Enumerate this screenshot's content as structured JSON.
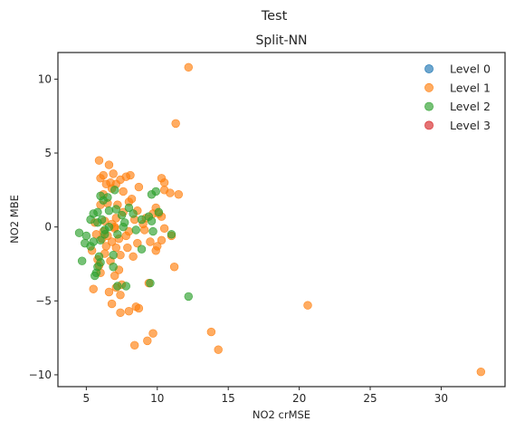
{
  "chart_data": {
    "type": "scatter",
    "suptitle": "Test",
    "title": "Split-NN",
    "xlabel": "NO2 crMSE",
    "ylabel": "NO2 MBE",
    "xlim": [
      3,
      34.5
    ],
    "ylim": [
      -10.8,
      11.8
    ],
    "xticks": [
      5,
      10,
      15,
      20,
      25,
      30
    ],
    "yticks": [
      -10,
      -5,
      0,
      5,
      10
    ],
    "grid": false,
    "legend_position": "top-right",
    "series": [
      {
        "name": "Level 0",
        "color": "#1f77b4",
        "points": []
      },
      {
        "name": "Level 1",
        "color": "#ff7f0e",
        "points": [
          [
            12.2,
            10.8
          ],
          [
            11.3,
            7.0
          ],
          [
            5.9,
            4.5
          ],
          [
            6.6,
            4.2
          ],
          [
            6.2,
            3.5
          ],
          [
            6.9,
            3.6
          ],
          [
            8.1,
            3.5
          ],
          [
            7.8,
            3.4
          ],
          [
            6.0,
            3.3
          ],
          [
            7.4,
            3.2
          ],
          [
            10.3,
            3.3
          ],
          [
            10.5,
            3.0
          ],
          [
            6.7,
            3.0
          ],
          [
            7.1,
            2.9
          ],
          [
            8.7,
            2.7
          ],
          [
            6.8,
            2.6
          ],
          [
            10.5,
            2.5
          ],
          [
            11.5,
            2.2
          ],
          [
            6.2,
            2.2
          ],
          [
            10.9,
            2.3
          ],
          [
            8.2,
            1.9
          ],
          [
            8.0,
            1.7
          ],
          [
            6.5,
            1.6
          ],
          [
            6.0,
            1.5
          ],
          [
            7.2,
            1.5
          ],
          [
            9.9,
            1.3
          ],
          [
            8.6,
            1.1
          ],
          [
            7.6,
            1.0
          ],
          [
            9.7,
            0.9
          ],
          [
            10.3,
            0.7
          ],
          [
            9.2,
            0.6
          ],
          [
            8.4,
            0.5
          ],
          [
            7.1,
            0.6
          ],
          [
            6.3,
            0.4
          ],
          [
            5.6,
            0.3
          ],
          [
            6.8,
            0.2
          ],
          [
            10.5,
            -0.1
          ],
          [
            9.1,
            -0.2
          ],
          [
            8.0,
            -0.3
          ],
          [
            7.0,
            -0.1
          ],
          [
            6.2,
            -0.3
          ],
          [
            5.7,
            -0.5
          ],
          [
            6.5,
            -0.6
          ],
          [
            11.0,
            -0.6
          ],
          [
            10.3,
            -0.9
          ],
          [
            7.3,
            -0.8
          ],
          [
            6.8,
            -1.0
          ],
          [
            9.5,
            -1.0
          ],
          [
            10.0,
            -1.3
          ],
          [
            6.4,
            -1.3
          ],
          [
            7.1,
            -1.4
          ],
          [
            7.9,
            -1.4
          ],
          [
            5.4,
            -1.6
          ],
          [
            9.9,
            -1.6
          ],
          [
            6.3,
            -1.8
          ],
          [
            7.4,
            -1.9
          ],
          [
            8.3,
            -2.0
          ],
          [
            5.8,
            -2.2
          ],
          [
            6.7,
            -2.3
          ],
          [
            11.2,
            -2.7
          ],
          [
            7.3,
            -2.9
          ],
          [
            6.0,
            -3.1
          ],
          [
            7.0,
            -3.3
          ],
          [
            9.4,
            -3.8
          ],
          [
            7.5,
            -3.9
          ],
          [
            7.1,
            -4.1
          ],
          [
            5.5,
            -4.2
          ],
          [
            6.6,
            -4.4
          ],
          [
            7.4,
            -4.6
          ],
          [
            6.8,
            -5.2
          ],
          [
            8.5,
            -5.4
          ],
          [
            8.0,
            -5.7
          ],
          [
            7.4,
            -5.8
          ],
          [
            8.7,
            -5.5
          ],
          [
            13.8,
            -7.1
          ],
          [
            9.7,
            -7.2
          ],
          [
            9.3,
            -7.7
          ],
          [
            8.4,
            -8.0
          ],
          [
            14.3,
            -8.3
          ],
          [
            20.6,
            -5.3
          ],
          [
            32.8,
            -9.8
          ],
          [
            7.0,
            0.0
          ],
          [
            6.1,
            -0.8
          ],
          [
            9.0,
            0.2
          ],
          [
            8.6,
            -1.1
          ],
          [
            6.4,
            2.9
          ],
          [
            7.8,
            -0.6
          ],
          [
            10.1,
            0.9
          ],
          [
            5.9,
            -2.6
          ],
          [
            7.6,
            2.4
          ]
        ]
      },
      {
        "name": "Level 2",
        "color": "#2ca02c",
        "points": [
          [
            6.0,
            2.1
          ],
          [
            6.5,
            2.0
          ],
          [
            6.2,
            1.8
          ],
          [
            7.0,
            2.5
          ],
          [
            9.9,
            2.4
          ],
          [
            9.6,
            2.2
          ],
          [
            8.0,
            1.3
          ],
          [
            7.1,
            1.2
          ],
          [
            6.6,
            1.1
          ],
          [
            5.8,
            1.0
          ],
          [
            5.5,
            0.9
          ],
          [
            7.5,
            0.8
          ],
          [
            8.3,
            0.9
          ],
          [
            9.4,
            0.7
          ],
          [
            10.1,
            1.0
          ],
          [
            5.3,
            0.5
          ],
          [
            6.1,
            0.5
          ],
          [
            8.9,
            0.5
          ],
          [
            9.6,
            0.4
          ],
          [
            7.7,
            0.3
          ],
          [
            5.8,
            0.3
          ],
          [
            6.6,
            0.0
          ],
          [
            4.5,
            -0.4
          ],
          [
            5.0,
            -0.6
          ],
          [
            6.3,
            -0.5
          ],
          [
            7.2,
            -0.5
          ],
          [
            6.0,
            -0.9
          ],
          [
            5.5,
            -1.0
          ],
          [
            4.9,
            -1.1
          ],
          [
            5.3,
            -1.3
          ],
          [
            11.0,
            -0.5
          ],
          [
            8.9,
            -1.5
          ],
          [
            6.9,
            -1.9
          ],
          [
            5.9,
            -2.0
          ],
          [
            4.7,
            -2.3
          ],
          [
            6.0,
            -2.4
          ],
          [
            5.8,
            -2.7
          ],
          [
            6.9,
            -2.7
          ],
          [
            5.7,
            -3.1
          ],
          [
            5.6,
            -3.3
          ],
          [
            7.2,
            -4.0
          ],
          [
            7.8,
            -4.0
          ],
          [
            9.5,
            -3.8
          ],
          [
            12.2,
            -4.7
          ],
          [
            9.7,
            -0.3
          ],
          [
            6.3,
            -0.2
          ],
          [
            7.6,
            0.0
          ],
          [
            8.5,
            -0.2
          ]
        ]
      },
      {
        "name": "Level 3",
        "color": "#d62728",
        "points": []
      }
    ]
  }
}
